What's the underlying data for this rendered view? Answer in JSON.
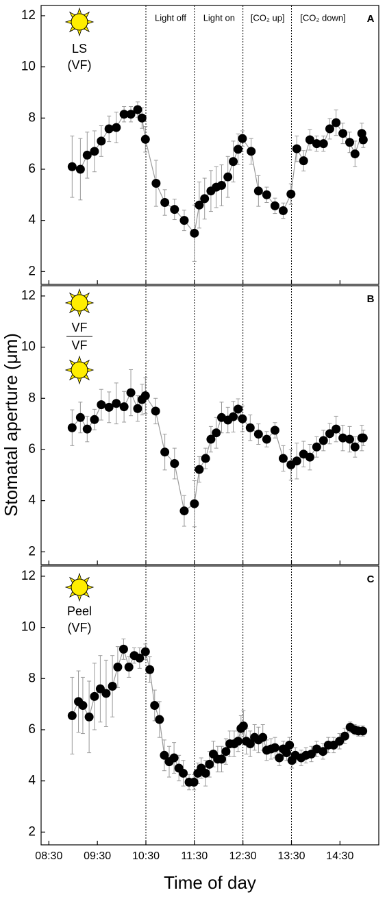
{
  "chart_data": [
    {
      "type": "line",
      "panel_label": "A",
      "inset_labels": [
        "LS",
        "(VF)"
      ],
      "annotations": [
        "Light off",
        "Light on",
        "[CO₂ up]",
        "[CO₂ down]"
      ],
      "reference_lines": [
        10.5,
        11.5,
        12.5,
        13.5
      ],
      "color": "#000000",
      "line_color": "#999999",
      "error_color": "#999999",
      "ylim": [
        1.5,
        12.4
      ],
      "yticks": [
        2,
        4,
        6,
        8,
        10,
        12
      ],
      "x": [
        8.98,
        9.15,
        9.29,
        9.44,
        9.58,
        9.74,
        9.89,
        10.05,
        10.19,
        10.33,
        10.42,
        10.49,
        10.71,
        10.89,
        11.09,
        11.29,
        11.5,
        11.6,
        11.71,
        11.84,
        11.95,
        12.06,
        12.19,
        12.3,
        12.4,
        12.49,
        12.67,
        12.82,
        12.99,
        13.16,
        13.33,
        13.49,
        13.61,
        13.75,
        13.88,
        14.02,
        14.16,
        14.29,
        14.42,
        14.56,
        14.7,
        14.81,
        14.95,
        14.98
      ],
      "values": [
        6.1,
        6.0,
        6.55,
        6.7,
        7.1,
        7.58,
        7.63,
        8.15,
        8.15,
        8.33,
        8.0,
        7.17,
        5.45,
        4.7,
        4.43,
        4.0,
        3.5,
        4.6,
        4.85,
        5.15,
        5.3,
        5.37,
        5.7,
        6.3,
        6.78,
        7.2,
        6.7,
        5.15,
        5.0,
        4.57,
        4.38,
        5.03,
        6.8,
        6.33,
        7.15,
        7.0,
        7.0,
        7.58,
        7.82,
        7.4,
        7.05,
        6.6,
        7.4,
        7.15
      ],
      "errors": [
        1.2,
        1.2,
        0.9,
        0.8,
        0.6,
        0.5,
        0.6,
        0.3,
        0.3,
        0.3,
        0.4,
        0.5,
        0.9,
        0.5,
        0.4,
        0.4,
        1.1,
        0.9,
        0.8,
        0.8,
        0.8,
        0.8,
        0.8,
        0.8,
        0.6,
        0.3,
        0.5,
        0.6,
        0.3,
        0.3,
        0.3,
        0.4,
        0.5,
        0.4,
        0.4,
        0.3,
        0.3,
        0.4,
        0.5,
        0.4,
        0.4,
        0.5,
        0.4,
        0.3
      ]
    },
    {
      "type": "line",
      "panel_label": "B",
      "inset_labels": [
        "VF",
        "VF"
      ],
      "ylabel": "Stomatal aperture (μm)",
      "color": "#000000",
      "line_color": "#999999",
      "error_color": "#999999",
      "ylim": [
        1.5,
        12.4
      ],
      "yticks": [
        2,
        4,
        6,
        8,
        10,
        12
      ],
      "x": [
        8.98,
        9.15,
        9.29,
        9.44,
        9.58,
        9.74,
        9.89,
        10.05,
        10.19,
        10.33,
        10.42,
        10.49,
        10.7,
        10.89,
        11.09,
        11.29,
        11.5,
        11.6,
        11.73,
        11.84,
        11.95,
        12.06,
        12.19,
        12.3,
        12.4,
        12.49,
        12.65,
        12.82,
        12.99,
        13.16,
        13.33,
        13.49,
        13.61,
        13.75,
        13.88,
        14.02,
        14.16,
        14.29,
        14.42,
        14.56,
        14.7,
        14.81,
        14.95,
        14.98
      ],
      "values": [
        6.85,
        7.25,
        6.8,
        7.17,
        7.75,
        7.65,
        7.8,
        7.67,
        8.22,
        7.6,
        7.95,
        8.1,
        7.5,
        5.9,
        5.45,
        3.6,
        3.88,
        5.22,
        5.65,
        6.4,
        6.65,
        7.25,
        7.15,
        7.28,
        7.58,
        7.2,
        6.85,
        6.6,
        6.4,
        6.75,
        5.65,
        5.4,
        5.55,
        5.82,
        5.7,
        6.1,
        6.35,
        6.62,
        6.8,
        6.45,
        6.4,
        6.1,
        6.45,
        6.45
      ],
      "errors": [
        0.7,
        0.6,
        0.5,
        0.4,
        0.6,
        0.6,
        0.8,
        0.6,
        0.9,
        0.5,
        0.6,
        0.7,
        0.5,
        0.7,
        0.6,
        0.6,
        0.9,
        0.5,
        0.4,
        0.5,
        0.6,
        0.6,
        0.5,
        0.6,
        0.4,
        0.5,
        0.5,
        0.4,
        0.3,
        0.3,
        0.5,
        0.6,
        0.7,
        0.5,
        0.5,
        0.4,
        0.4,
        0.4,
        0.5,
        0.5,
        0.5,
        0.4,
        0.5,
        0.3
      ]
    },
    {
      "type": "line",
      "panel_label": "C",
      "inset_labels": [
        "Peel",
        "(VF)"
      ],
      "xlabel": "Time of day",
      "color": "#000000",
      "line_color": "#999999",
      "error_color": "#999999",
      "xlim": [
        8.34,
        15.3
      ],
      "xticks": [
        {
          "value": 8.5,
          "label": "08:30"
        },
        {
          "value": 9.5,
          "label": "09:30"
        },
        {
          "value": 10.5,
          "label": "10:30"
        },
        {
          "value": 11.5,
          "label": "11:30"
        },
        {
          "value": 12.5,
          "label": "12:30"
        },
        {
          "value": 13.5,
          "label": "13:30"
        },
        {
          "value": 14.5,
          "label": "14:30"
        }
      ],
      "ylim": [
        1.5,
        12.4
      ],
      "yticks": [
        2,
        4,
        6,
        8,
        10,
        12
      ],
      "x": [
        8.98,
        9.11,
        9.2,
        9.33,
        9.44,
        9.56,
        9.68,
        9.81,
        9.92,
        10.04,
        10.15,
        10.26,
        10.37,
        10.49,
        10.58,
        10.68,
        10.78,
        10.88,
        10.98,
        11.08,
        11.18,
        11.27,
        11.39,
        11.49,
        11.57,
        11.64,
        11.73,
        11.81,
        11.89,
        11.98,
        12.06,
        12.15,
        12.23,
        12.32,
        12.4,
        12.46,
        12.51,
        12.57,
        12.65,
        12.74,
        12.82,
        12.91,
        12.99,
        13.08,
        13.16,
        13.25,
        13.33,
        13.4,
        13.46,
        13.51,
        13.58,
        13.7,
        13.8,
        13.91,
        14.02,
        14.15,
        14.26,
        14.37,
        14.49,
        14.6,
        14.71,
        14.8,
        14.88,
        14.97
      ],
      "values": [
        6.55,
        7.1,
        6.95,
        6.5,
        7.3,
        7.6,
        7.42,
        7.7,
        8.45,
        9.15,
        8.45,
        8.9,
        8.8,
        9.05,
        8.35,
        6.95,
        6.4,
        5.0,
        4.75,
        4.9,
        4.5,
        4.3,
        3.95,
        3.95,
        4.3,
        4.5,
        4.3,
        4.65,
        5.05,
        4.85,
        4.85,
        5.15,
        5.45,
        5.45,
        5.55,
        6.05,
        6.15,
        5.55,
        5.45,
        5.7,
        5.6,
        5.7,
        5.2,
        5.25,
        5.3,
        4.9,
        5.25,
        5.1,
        5.4,
        4.8,
        5.0,
        4.9,
        5.0,
        5.05,
        5.25,
        5.15,
        5.4,
        5.4,
        5.55,
        5.75,
        6.1,
        6.0,
        5.95,
        5.95
      ],
      "errors": [
        1.5,
        1.2,
        1.1,
        1.4,
        1.3,
        1.3,
        1.3,
        1.2,
        0.8,
        0.4,
        0.4,
        0.3,
        0.4,
        0.3,
        0.5,
        0.6,
        0.7,
        0.6,
        0.6,
        0.6,
        0.5,
        0.5,
        0.3,
        0.3,
        0.4,
        0.4,
        0.5,
        0.5,
        0.5,
        0.5,
        0.5,
        0.5,
        0.5,
        0.5,
        0.4,
        0.5,
        0.6,
        0.5,
        0.5,
        0.5,
        0.5,
        0.5,
        0.4,
        0.4,
        0.4,
        0.3,
        0.3,
        0.3,
        0.3,
        0.3,
        0.3,
        0.3,
        0.3,
        0.3,
        0.3,
        0.3,
        0.3,
        0.3,
        0.3,
        0.3,
        0.2,
        0.2,
        0.2,
        0.2
      ]
    }
  ]
}
